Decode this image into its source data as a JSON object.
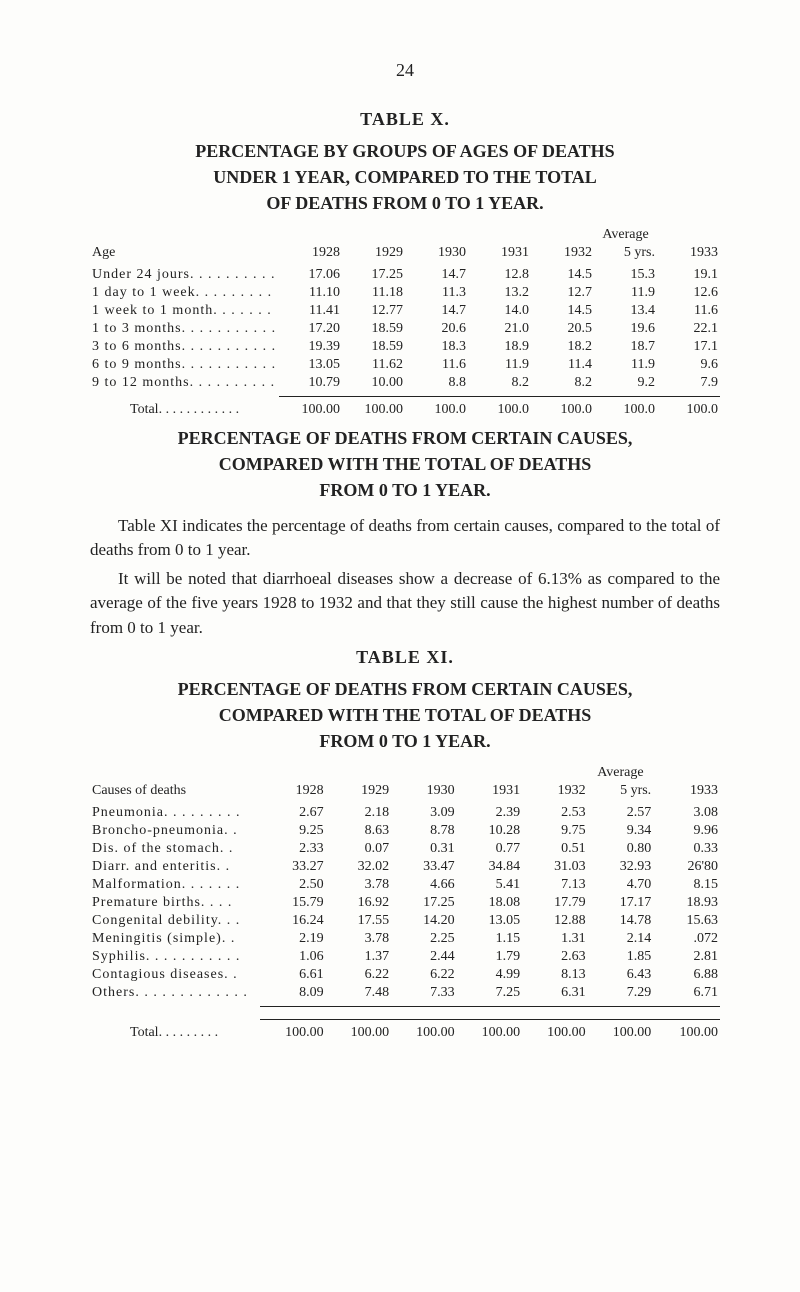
{
  "pageNumber": "24",
  "tableX": {
    "label": "TABLE  X.",
    "titleLines": [
      "PERCENTAGE  BY  GROUPS  OF  AGES  OF  DEATHS",
      "UNDER  1  YEAR,  COMPARED  TO  THE  TOTAL",
      "OF  DEATHS  FROM  0  TO  1  YEAR."
    ],
    "averageLabel": "Average",
    "headers": [
      "Age",
      "1928",
      "1929",
      "1930",
      "1931",
      "1932",
      "5 yrs.",
      "1933"
    ],
    "rows": [
      [
        "Under 24 jours. . . . . . . . . .",
        "17.06",
        "17.25",
        "14.7",
        "12.8",
        "14.5",
        "15.3",
        "19.1"
      ],
      [
        "1 day to 1 week. . . . . . . . .",
        "11.10",
        "11.18",
        "11.3",
        "13.2",
        "12.7",
        "11.9",
        "12.6"
      ],
      [
        "1 week to 1 month. . . . . . .",
        "11.41",
        "12.77",
        "14.7",
        "14.0",
        "14.5",
        "13.4",
        "11.6"
      ],
      [
        "1 to 3 months. . . . . . . . . . .",
        "17.20",
        "18.59",
        "20.6",
        "21.0",
        "20.5",
        "19.6",
        "22.1"
      ],
      [
        "3 to 6 months. . . . . . . . . . .",
        "19.39",
        "18.59",
        "18.3",
        "18.9",
        "18.2",
        "18.7",
        "17.1"
      ],
      [
        "6 to 9 months. . . . . . . . . . .",
        "13.05",
        "11.62",
        "11.6",
        "11.9",
        "11.4",
        "11.9",
        "9.6"
      ],
      [
        "9 to 12 months. . . . . . . . . .",
        "10.79",
        "10.00",
        "8.8",
        "8.2",
        "8.2",
        "9.2",
        "7.9"
      ]
    ],
    "totalLabel": "Total. . . . . .   . . . . . .",
    "totals": [
      "100.00",
      "100.00",
      "100.0",
      "100.0",
      "100.0",
      "100.0",
      "100.0"
    ]
  },
  "midTitleLines": [
    "PERCENTAGE  OF  DEATHS  FROM  CERTAIN  CAUSES,",
    "COMPARED  WITH  THE  TOTAL  OF  DEATHS",
    "FROM  0  TO  1  YEAR."
  ],
  "para1": "Table XI indicates the percentage of deaths from cer­tain causes, compared to the total of deaths from 0 to 1 year.",
  "para2": "It will be noted that diarrhoeal diseases show a decrease of 6.13% as compared to the average of the five years 1928 to 1932 and that they still cause the highest number of deaths from 0 to 1 year.",
  "tableXI": {
    "label": "TABLE  XI.",
    "titleLines": [
      "PERCENTAGE  OF  DEATHS  FROM  CERTAIN  CAUSES,",
      "COMPARED  WITH  THE  TOTAL  OF  DEATHS",
      "FROM  0  TO  1  YEAR."
    ],
    "averageLabel": "Average",
    "headers": [
      "Causes of deaths",
      "1928",
      "1929",
      "1930",
      "1931",
      "1932",
      "5 yrs.",
      "1933"
    ],
    "rows": [
      [
        "Pneumonia. . . . . . . . .",
        "2.67",
        "2.18",
        "3.09",
        "2.39",
        "2.53",
        "2.57",
        "3.08"
      ],
      [
        "Broncho-pneumonia. .",
        "9.25",
        "8.63",
        "8.78",
        "10.28",
        "9.75",
        "9.34",
        "9.96"
      ],
      [
        "Dis. of the stomach. .",
        "2.33",
        "0.07",
        "0.31",
        "0.77",
        "0.51",
        "0.80",
        "0.33"
      ],
      [
        "Diarr. and enteritis. .",
        "33.27",
        "32.02",
        "33.47",
        "34.84",
        "31.03",
        "32.93",
        "26'80"
      ],
      [
        "Malformation. . . . . . .",
        "2.50",
        "3.78",
        "4.66",
        "5.41",
        "7.13",
        "4.70",
        "8.15"
      ],
      [
        "Premature births. . . .",
        "15.79",
        "16.92",
        "17.25",
        "18.08",
        "17.79",
        "17.17",
        "18.93"
      ],
      [
        "Congenital debility. . .",
        "16.24",
        "17.55",
        "14.20",
        "13.05",
        "12.88",
        "14.78",
        "15.63"
      ],
      [
        "Meningitis (simple). .",
        "2.19",
        "3.78",
        "2.25",
        "1.15",
        "1.31",
        "2.14",
        ".072"
      ],
      [
        "Syphilis. . . . . . . . . . .",
        "1.06",
        "1.37",
        "2.44",
        "1.79",
        "2.63",
        "1.85",
        "2.81"
      ],
      [
        "Contagious diseases. .",
        "6.61",
        "6.22",
        "6.22",
        "4.99",
        "8.13",
        "6.43",
        "6.88"
      ],
      [
        "Others. . . . . . . . . . . . .",
        "8.09",
        "7.48",
        "7.33",
        "7.25",
        "6.31",
        "7.29",
        "6.71"
      ]
    ],
    "totalLabel": "Total. . . . . . . . .",
    "totals": [
      "100.00",
      "100.00",
      "100.00",
      "100.00",
      "100.00",
      "100.00",
      "100.00"
    ]
  }
}
